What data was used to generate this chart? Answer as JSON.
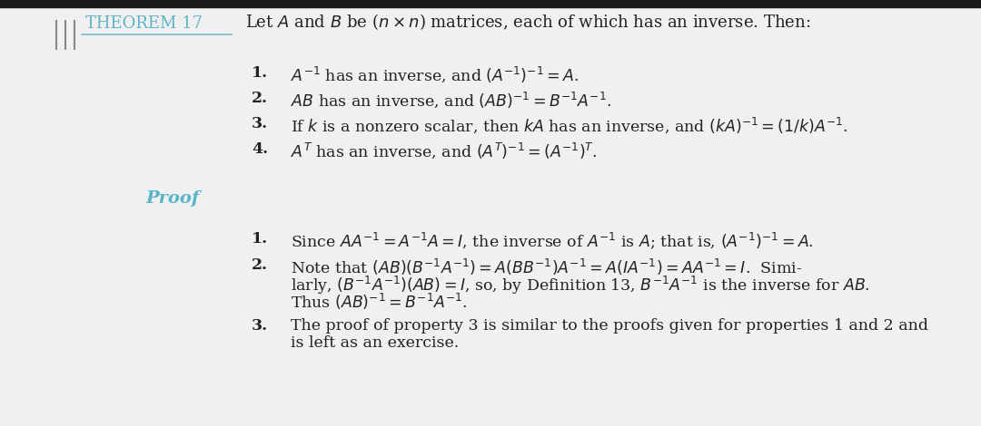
{
  "bg_color": "#f0f0f0",
  "top_bar_color": "#1a1a1a",
  "theorem_color": "#5ab4c8",
  "body_color": "#222222",
  "proof_color": "#5ab4c8",
  "theorem_label": "Theorem 17",
  "theorem_header": "Let $A$ and $B$ be ($n \\times n$) matrices, each of which has an inverse. Then:",
  "theorem_items_bold": [
    "1.",
    "2.",
    "3.",
    "4."
  ],
  "theorem_items_text": [
    "$A^{-1}$ has an inverse, and $(A^{-1})^{-1} = A$.",
    "$AB$ has an inverse, and $(AB)^{-1} = B^{-1}A^{-1}$.",
    "If $k$ is a nonzero scalar, then $kA$ has an inverse, and $(kA)^{-1} = (1/k)A^{-1}$.",
    "$A^T$ has an inverse, and $(A^T)^{-1} = (A^{-1})^T$."
  ],
  "proof_label": "Proof",
  "proof_items_bold": [
    "1.",
    "2.",
    "3."
  ],
  "proof_item1": "Since $AA^{-1} = A^{-1}A = I$, the inverse of $A^{-1}$ is $A$; that is, $(A^{-1})^{-1} = A$.",
  "proof_item2_lines": [
    "Note that $(AB)(B^{-1}A^{-1}) = A(BB^{-1})A^{-1} = A(IA^{-1}) = AA^{-1} = I$.  Simi-",
    "larly, $(B^{-1}A^{-1})(AB) = I$, so, by Definition 13, $B^{-1}A^{-1}$ is the inverse for $AB$.",
    "Thus $(AB)^{-1} = B^{-1}A^{-1}$."
  ],
  "proof_item3_lines": [
    "The proof of property 3 is similar to the proofs given for properties 1 and 2 and",
    "is left as an exercise."
  ],
  "line_color": "#7ab8c8",
  "vline_color": "#888888",
  "font_size_theorem_label": 13,
  "font_size_header": 13,
  "font_size_body": 12.5,
  "font_size_proof_label": 14
}
